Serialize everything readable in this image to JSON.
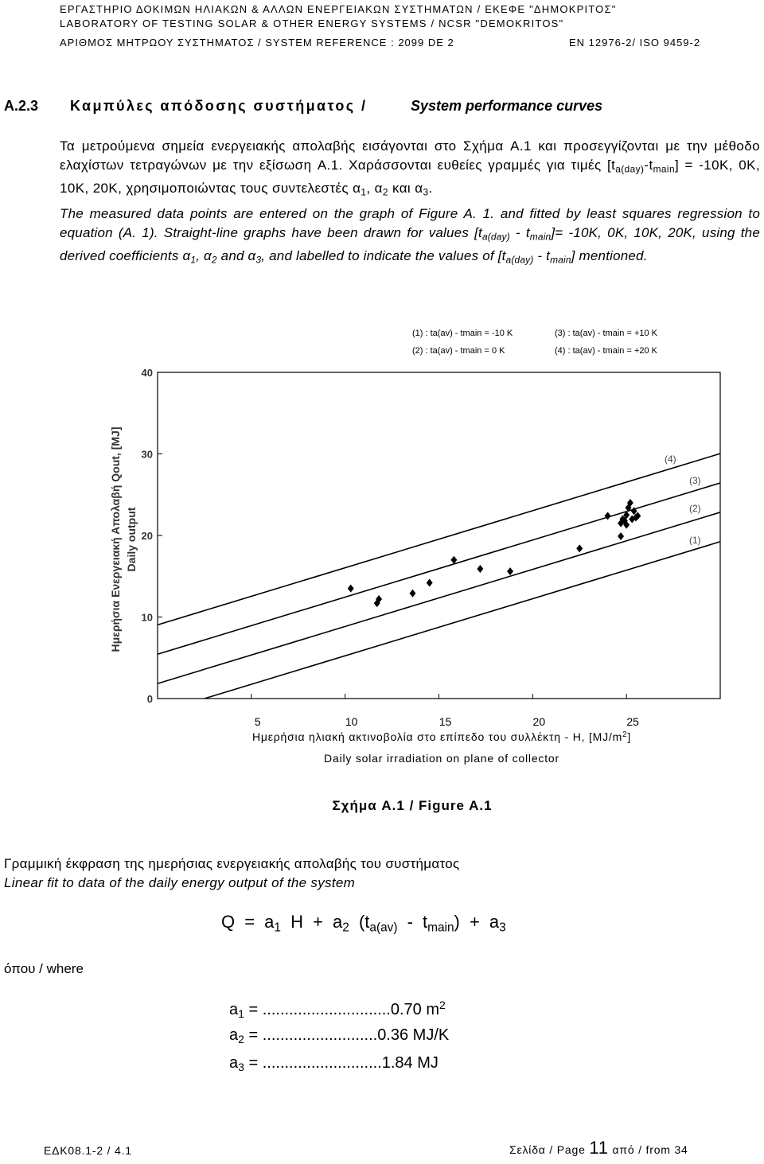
{
  "header": {
    "line1": "ΕΡΓΑΣΤΗΡΙΟ ΔΟΚΙΜΩΝ ΗΛΙΑΚΩΝ & ΑΛΛΩΝ ΕΝΕΡΓΕΙΑΚΩΝ ΣΥΣΤΗΜΑΤΩΝ / ΕΚΕΦΕ \"ΔΗΜΟΚΡΙΤΟΣ\"",
    "line2": "LABORATORY OF TESTING SOLAR & OTHER ENERGY SYSTEMS / NCSR \"DEMOKRITOS\"",
    "reference": "ΑΡΙΘΜΟΣ ΜΗΤΡΩΟΥ ΣΥΣΤΗΜΑΤΟΣ / SYSTEM REFERENCE : 2099 DE 2",
    "standard": "EN 12976-2/ ISO 9459-2"
  },
  "section": {
    "number": "A.2.3",
    "title_greek": "Καμπύλες απόδοσης συστήματος /",
    "title_english": "System performance curves"
  },
  "paragraphs": [
    {
      "runs": [
        {
          "text": "Τα μετρούμενα σημεία ενεργειακής απολαβής εισάγονται στο Σχήμα A.1 και προσεγγίζονται με την μέθοδο ελαχίστων τετραγώνων με την εξίσωση A.1. Χαράσσονται ευθείες γραμμές για τιμές [t"
        },
        {
          "sub": "a(day)"
        },
        {
          "text": "-t"
        },
        {
          "sub": "main"
        },
        {
          "text": "] = -10K, 0K, 10K, 20K, χρησιμοποιώντας τους συντελεστές α"
        },
        {
          "sub": "1"
        },
        {
          "text": ", α"
        },
        {
          "sub": "2"
        },
        {
          "text": " και α"
        },
        {
          "sub": "3"
        },
        {
          "text": "."
        }
      ]
    },
    {
      "runs": [
        {
          "text": "The measured data points are entered on the graph of Figure A. 1. and fitted by least squares regression to equation (A. 1). Straight-line graphs have been drawn for values [t"
        },
        {
          "sub": "a(day)"
        },
        {
          "text": " - t"
        },
        {
          "sub": "main"
        },
        {
          "text": "]= -10K, 0K, 10K, 20K, using the derived coefficients α"
        },
        {
          "sub": "1"
        },
        {
          "text": ", α"
        },
        {
          "sub": "2"
        },
        {
          "text": " and α"
        },
        {
          "sub": "3"
        },
        {
          "text": ", and labelled to indicate the values of [t"
        },
        {
          "sub": "a(day)"
        },
        {
          "text": " - t"
        },
        {
          "sub": "main"
        },
        {
          "text": "] mentioned."
        }
      ]
    }
  ],
  "chart_data": {
    "type": "scatter",
    "legend": [
      "(1) : ta(av) - tmain = -10 K",
      "(2) : ta(av) - tmain = 0 K",
      "(3) : ta(av) - tmain = +10 K",
      "(4) : ta(av) - tmain = +20 K"
    ],
    "y_label": "Ημερήσια Ενεργειακή Απολαβή Qout, [MJ]",
    "y_label_english": "Daily output",
    "x_label": {
      "runs": [
        {
          "text": "Ημερήσια ηλιακή ακτινοβολία στο επίπεδο του συλλέκτη - H, [MJ/m"
        },
        {
          "sup": "2"
        },
        {
          "text": "]"
        }
      ]
    },
    "x_label_english": "Daily solar irradiation on plane of collector",
    "xlim": [
      0,
      30
    ],
    "xticks": [
      5,
      10,
      15,
      20,
      25
    ],
    "ylim": [
      0,
      40
    ],
    "yticks": [
      0,
      10,
      20,
      30,
      40
    ],
    "points": {
      "color": "#000000",
      "x": [
        10.3,
        11.7,
        11.8,
        13.6,
        14.5,
        15.8,
        17.2,
        18.8,
        22.5,
        24.0,
        24.7,
        24.7,
        24.8,
        24.9,
        25.0,
        25.0,
        25.1,
        25.2,
        25.3,
        25.4,
        25.5,
        25.6
      ],
      "values": [
        13.5,
        11.7,
        12.2,
        12.9,
        14.2,
        17.0,
        15.9,
        15.6,
        18.4,
        22.4,
        19.9,
        21.5,
        22.0,
        21.8,
        22.5,
        21.3,
        23.4,
        24.0,
        22.0,
        23.0,
        22.2,
        22.4
      ]
    },
    "series": [
      {
        "name": "(1)",
        "color": "#000000",
        "x": [
          2.5,
          30
        ],
        "values": [
          0,
          19.24
        ]
      },
      {
        "name": "(2)",
        "color": "#000000",
        "x": [
          0,
          30
        ],
        "values": [
          1.84,
          22.84
        ]
      },
      {
        "name": "(3)",
        "color": "#000000",
        "x": [
          0,
          30
        ],
        "values": [
          5.44,
          26.44
        ]
      },
      {
        "name": "(4)",
        "color": "#000000",
        "x": [
          0,
          30
        ],
        "values": [
          9.04,
          30.04
        ]
      }
    ]
  },
  "caption": "Σχήμα A.1 / Figure A.1",
  "fit_title_greek": "Γραμμική έκφραση της ημερήσιας ενεργειακής απολαβής του συστήματος",
  "fit_title_english": "Linear fit to data of the daily energy output of the system",
  "formula": {
    "runs": [
      {
        "text": "Q = a"
      },
      {
        "sub": "1"
      },
      {
        "text": " H + a"
      },
      {
        "sub": "2"
      },
      {
        "text": " (t"
      },
      {
        "sub": "a(av)"
      },
      {
        "text": " - t"
      },
      {
        "sub": "main"
      },
      {
        "text": ") + a"
      },
      {
        "sub": "3"
      }
    ]
  },
  "where": "όπου / where",
  "coefficients": [
    {
      "runs": [
        {
          "text": "a"
        },
        {
          "sub": "1"
        },
        {
          "text": " = .............................0.70 m"
        },
        {
          "sup": "2"
        }
      ]
    },
    {
      "runs": [
        {
          "text": "a"
        },
        {
          "sub": "2"
        },
        {
          "text": " = ..........................0.36 MJ/K"
        }
      ]
    },
    {
      "runs": [
        {
          "text": "a"
        },
        {
          "sub": "3"
        },
        {
          "text": " = ...........................1.84 MJ"
        }
      ]
    }
  ],
  "footer": {
    "document": "ΕΔΚ08.1-2 / 4.1",
    "page_label": "Σελίδα / Page",
    "page": "11",
    "of_label": "από / from",
    "total": "34"
  }
}
